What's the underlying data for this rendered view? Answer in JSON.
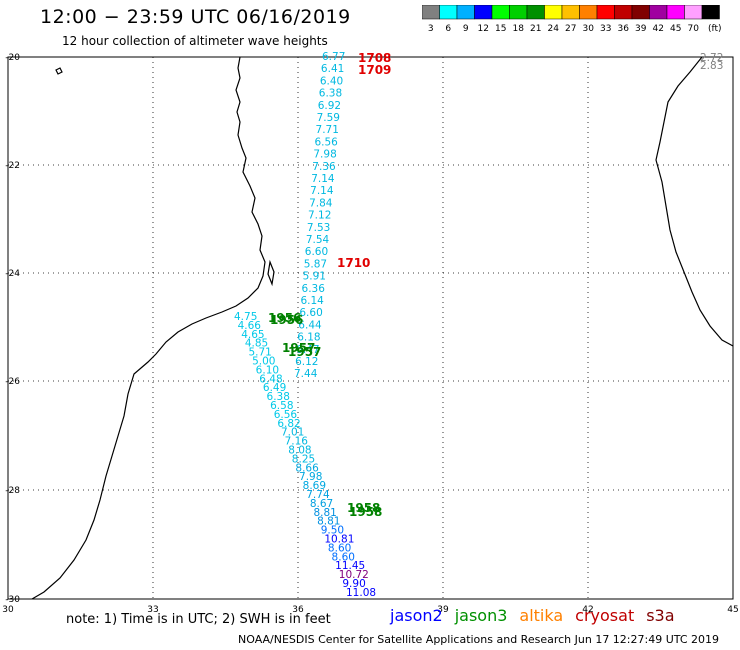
{
  "header": {
    "title": "12:00 − 23:59 UTC 06/16/2019",
    "subtitle": "12 hour collection of altimeter wave heights"
  },
  "color_scale": {
    "colors": [
      "#808080",
      "#00ffff",
      "#00b0ff",
      "#0000ff",
      "#00ff00",
      "#00d000",
      "#009000",
      "#ffff00",
      "#ffc000",
      "#ff8000",
      "#ff0000",
      "#c00000",
      "#800000",
      "#a000a0",
      "#ff00ff",
      "#ffa0ff",
      "#000000"
    ],
    "labels": [
      "3",
      "6",
      "9",
      "12",
      "15",
      "18",
      "21",
      "24",
      "27",
      "30",
      "33",
      "36",
      "39",
      "42",
      "45",
      "70",
      "(ft)"
    ]
  },
  "map": {
    "lon_ticks": [
      "30",
      "33",
      "36",
      "39",
      "42",
      "45"
    ],
    "lat_ticks": [
      "-20",
      "-22",
      "-24",
      "-26",
      "-28",
      "-30"
    ]
  },
  "readings": {
    "north_track": [
      "6.77",
      "6.41",
      "6.40",
      "6.38",
      "6.92",
      "7.59",
      "7.71",
      "6.56",
      "7.98",
      "7.36",
      "7.14",
      "7.14",
      "7.84",
      "7.12",
      "7.53",
      "7.54",
      "6.60",
      "5.87",
      "5.91",
      "6.36",
      "6.14",
      "6.60",
      "6.44",
      "6.18",
      "6.47",
      "6.12",
      "7.44"
    ],
    "south_track": [
      "4.75",
      "4.66",
      "4.65",
      "4.85",
      "5.71",
      "5.00",
      "6.10",
      "6.48",
      "6.49",
      "6.38",
      "6.58",
      "6.56",
      "6.82",
      "7.01",
      "7.16",
      "8.08",
      "8.25",
      "8.66",
      "7.98",
      "8.69",
      "7.74",
      "8.67",
      "8.81",
      "8.81",
      "9.50",
      "10.81",
      "8.60",
      "8.60",
      "11.45",
      "10.72",
      "9.90",
      "11.08"
    ],
    "east_edge": [
      "2.72",
      "2.83"
    ]
  },
  "pass_times": {
    "red": [
      "1708",
      "1709",
      "1710"
    ],
    "green": [
      "1956",
      "1956",
      "1957",
      "1957",
      "1958",
      "1958"
    ]
  },
  "footer": {
    "note": "note: 1) Time is in UTC; 2) SWH is in feet",
    "credit": "NOAA/NESDIS Center for Satellite Applications and Research   Jun 17 12:27:49 UTC 2019",
    "missions": [
      {
        "name": "jason2",
        "color": "#0000ff"
      },
      {
        "name": "jason3",
        "color": "#009000"
      },
      {
        "name": "altika",
        "color": "#ff8000"
      },
      {
        "name": "cryosat",
        "color": "#c00000"
      },
      {
        "name": "s3a",
        "color": "#800000"
      }
    ]
  }
}
